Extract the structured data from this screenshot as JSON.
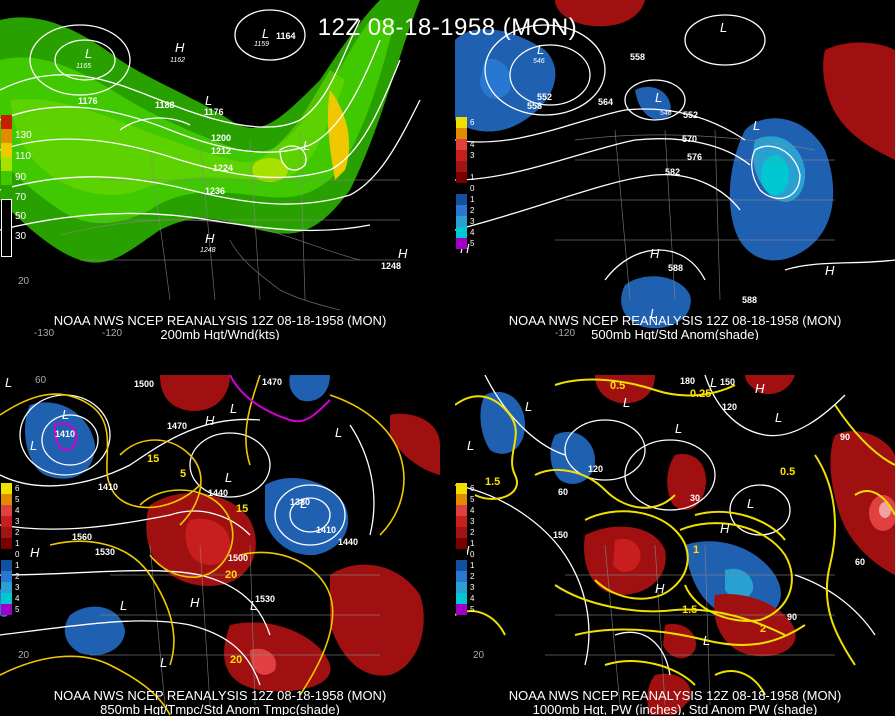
{
  "title": "12Z 08-18-1958 (MON)",
  "panels": [
    {
      "caption_line1": "NOAA NWS NCEP REANALYSIS 12Z 08-18-1958 (MON)",
      "caption_line2": "200mb Hgt/Wnd(kts)",
      "legend": [
        "130",
        "110",
        "90",
        "70",
        "50",
        "30"
      ],
      "legend_colors": [
        "#c81e00",
        "#e08c00",
        "#f0c800",
        "#a8e000",
        "#40c800",
        "#28a000"
      ],
      "lows": [
        "L",
        "L",
        "L",
        "L"
      ],
      "highs": [
        "H",
        "H",
        "H",
        "H"
      ],
      "values": [
        "1176",
        "1188",
        "1200",
        "1212",
        "1224",
        "1236",
        "1164",
        "1165",
        "1162",
        "1176",
        "1248",
        "1248",
        "1159"
      ],
      "axis": [
        "-130",
        "-120",
        "20"
      ]
    },
    {
      "caption_line1": "NOAA NWS NCEP REANALYSIS 12Z 08-18-1958 (MON)",
      "caption_line2": "500mb Hgt/Std Anom(shade)",
      "legend": [
        "6",
        "5",
        "4",
        "3",
        "2",
        "1",
        "0",
        "1",
        "2",
        "3",
        "4",
        "5"
      ],
      "legend_colors": [
        "#f0e000",
        "#e08c00",
        "#e04040",
        "#c81e1e",
        "#a01414",
        "#780000",
        "#000000",
        "#1450a0",
        "#2878d2",
        "#28a0d2",
        "#00c8d2",
        "#a000c8"
      ],
      "values": [
        "552",
        "558",
        "564",
        "570",
        "576",
        "582",
        "588",
        "588",
        "546",
        "546",
        "552",
        "558"
      ],
      "axis": [
        "-120"
      ]
    },
    {
      "caption_line1": "NOAA NWS NCEP REANALYSIS 12Z 08-18-1958 (MON)",
      "caption_line2": "850mb Hgt/Tmpc/Std Anom Tmpc(shade)",
      "legend": [
        "6",
        "5",
        "4",
        "3",
        "2",
        "1",
        "0",
        "1",
        "2",
        "3",
        "4",
        "5"
      ],
      "values": [
        "1500",
        "1470",
        "1440",
        "1410",
        "1560",
        "1530",
        "1500",
        "1530",
        "1470",
        "1410",
        "1380",
        "1440",
        "1410"
      ],
      "temps": [
        "15",
        "5",
        "20",
        "20",
        "15"
      ],
      "axis": [
        "60",
        "20"
      ]
    },
    {
      "caption_line1": "NOAA NWS NCEP REANALYSIS 12Z 08-18-1958 (MON)",
      "caption_line2": "1000mb Hgt, PW (inches), Std Anom PW (shade)",
      "legend": [
        "6",
        "5",
        "4",
        "3",
        "2",
        "1",
        "0",
        "1",
        "2",
        "3",
        "4",
        "5"
      ],
      "values": [
        "180",
        "150",
        "120",
        "90",
        "60",
        "30",
        "120",
        "150",
        "60",
        "90"
      ],
      "pw": [
        "0.5",
        "0.25",
        "1.5",
        "1",
        "2",
        "0.5",
        "1.5"
      ],
      "axis": [
        "20"
      ]
    }
  ],
  "colors": {
    "contour": "#ffffff",
    "pw_contour": "#f0e000",
    "warm": "#a01010",
    "cold": "#2060b0",
    "jet_low": "#28a000",
    "jet_mid": "#40c800",
    "jet_high": "#f0c800",
    "purple": "#d000d0"
  }
}
